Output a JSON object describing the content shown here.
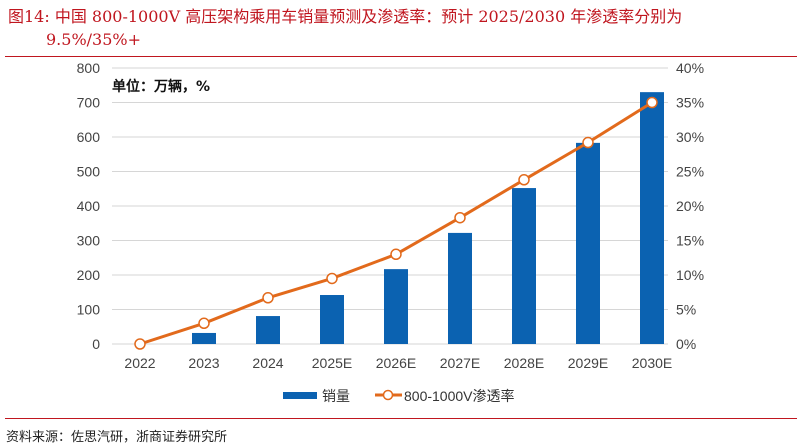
{
  "title": {
    "line1": "图14:   中国 800-1000V 高压架构乘用车销量预测及渗透率：预计 2025/2030 年渗透率分别为",
    "line2": "9.5%/35%+"
  },
  "source": "资料来源：佐思汽研，浙商证券研究所",
  "chart_data": {
    "type": "bar+line",
    "unit_label": "单位：万辆，%",
    "categories": [
      "2022",
      "2023",
      "2024",
      "2025E",
      "2026E",
      "2027E",
      "2028E",
      "2029E",
      "2030E"
    ],
    "series": [
      {
        "name": "销量",
        "type": "bar",
        "axis": "left",
        "color": "#0b62b1",
        "values": [
          0,
          32,
          81,
          142,
          217,
          322,
          452,
          583,
          730
        ]
      },
      {
        "name": "800-1000V渗透率",
        "type": "line",
        "axis": "right",
        "color": "#e26a1c",
        "values": [
          0,
          3.0,
          6.7,
          9.5,
          13.0,
          18.3,
          23.8,
          29.2,
          35.0
        ]
      }
    ],
    "left_axis": {
      "min": 0,
      "max": 800,
      "ticks": [
        "0",
        "100",
        "200",
        "300",
        "400",
        "500",
        "600",
        "700",
        "800"
      ]
    },
    "right_axis": {
      "min": 0,
      "max": 40,
      "ticks": [
        "0%",
        "5%",
        "10%",
        "15%",
        "20%",
        "25%",
        "30%",
        "35%",
        "40%"
      ]
    },
    "grid": true,
    "legend": "bottom"
  }
}
